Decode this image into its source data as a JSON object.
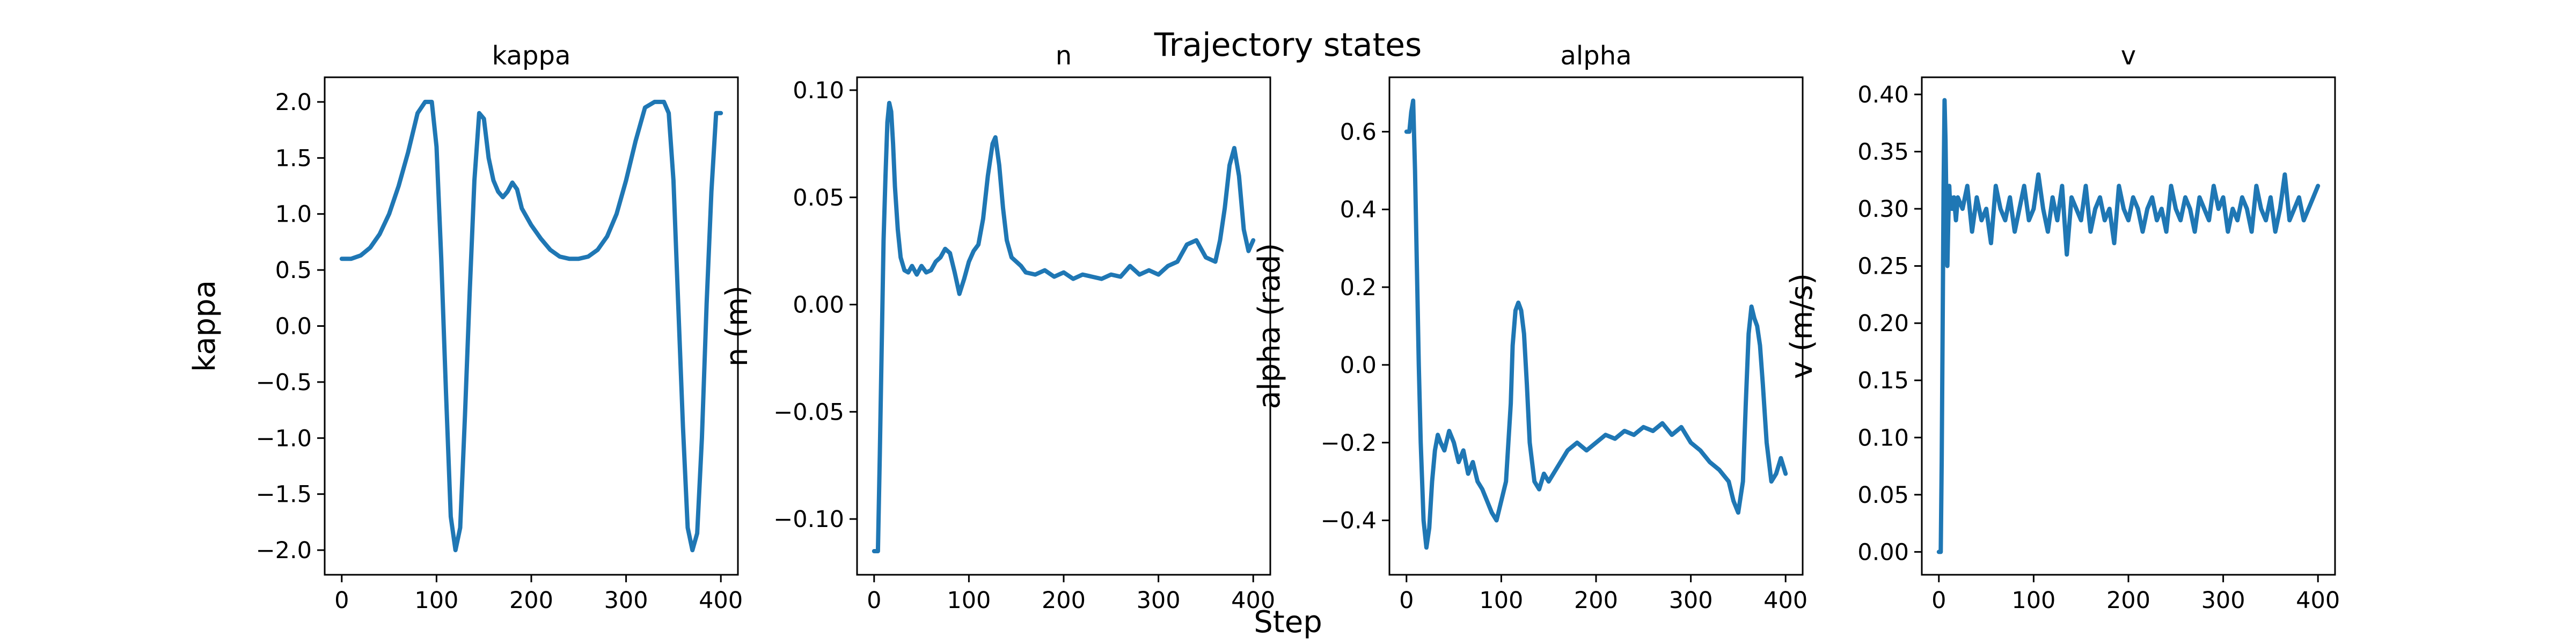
{
  "figure": {
    "suptitle": "Trajectory states",
    "shared_xlabel": "Step"
  },
  "chart_data": [
    {
      "type": "line",
      "title": "kappa",
      "xlabel": "",
      "ylabel": "kappa",
      "xlim": [
        -18,
        418
      ],
      "ylim": [
        -2.22,
        2.22
      ],
      "xticks": [
        0,
        100,
        200,
        300,
        400
      ],
      "yticks": [
        -2.0,
        -1.5,
        -1.0,
        -0.5,
        0.0,
        0.5,
        1.0,
        1.5,
        2.0
      ],
      "ytick_labels": [
        "−2.0",
        "−1.5",
        "−1.0",
        "−0.5",
        "0.0",
        "0.5",
        "1.0",
        "1.5",
        "2.0"
      ],
      "grid": false,
      "series": [
        {
          "color": "#1f77b4",
          "x": [
            0,
            10,
            20,
            30,
            40,
            50,
            60,
            70,
            80,
            88,
            95,
            100,
            105,
            110,
            115,
            120,
            125,
            130,
            135,
            140,
            145,
            150,
            155,
            160,
            165,
            170,
            175,
            180,
            185,
            190,
            200,
            210,
            220,
            230,
            240,
            250,
            260,
            270,
            280,
            290,
            300,
            310,
            320,
            330,
            340,
            345,
            350,
            355,
            360,
            365,
            370,
            375,
            380,
            385,
            390,
            395,
            400
          ],
          "y": [
            0.6,
            0.6,
            0.63,
            0.7,
            0.82,
            1.0,
            1.25,
            1.55,
            1.9,
            2.0,
            2.0,
            1.6,
            0.6,
            -0.6,
            -1.7,
            -2.0,
            -1.8,
            -0.8,
            0.3,
            1.3,
            1.9,
            1.85,
            1.5,
            1.3,
            1.2,
            1.15,
            1.2,
            1.28,
            1.22,
            1.05,
            0.9,
            0.78,
            0.68,
            0.62,
            0.6,
            0.6,
            0.62,
            0.68,
            0.8,
            1.0,
            1.3,
            1.65,
            1.95,
            2.0,
            2.0,
            1.9,
            1.3,
            0.2,
            -0.9,
            -1.8,
            -2.0,
            -1.85,
            -1.0,
            0.2,
            1.2,
            1.9,
            1.9
          ]
        }
      ]
    },
    {
      "type": "line",
      "title": "n",
      "xlabel": "",
      "ylabel": "n (m)",
      "xlim": [
        -18,
        418
      ],
      "ylim": [
        -0.126,
        0.106
      ],
      "xticks": [
        0,
        100,
        200,
        300,
        400
      ],
      "yticks": [
        -0.1,
        -0.05,
        0.0,
        0.05,
        0.1
      ],
      "ytick_labels": [
        "−0.10",
        "−0.05",
        "0.00",
        "0.05",
        "0.10"
      ],
      "grid": false,
      "series": [
        {
          "color": "#1f77b4",
          "x": [
            0,
            4,
            6,
            8,
            10,
            12,
            14,
            16,
            18,
            20,
            22,
            25,
            28,
            32,
            36,
            40,
            45,
            50,
            55,
            60,
            65,
            70,
            75,
            80,
            85,
            90,
            95,
            100,
            105,
            110,
            115,
            120,
            125,
            128,
            132,
            136,
            140,
            145,
            150,
            155,
            160,
            170,
            180,
            190,
            200,
            210,
            220,
            230,
            240,
            250,
            260,
            270,
            280,
            290,
            300,
            310,
            320,
            330,
            340,
            350,
            360,
            365,
            370,
            375,
            380,
            385,
            390,
            395,
            400
          ],
          "y": [
            -0.115,
            -0.115,
            -0.07,
            -0.02,
            0.03,
            0.06,
            0.085,
            0.094,
            0.09,
            0.075,
            0.055,
            0.035,
            0.022,
            0.016,
            0.015,
            0.018,
            0.014,
            0.018,
            0.015,
            0.016,
            0.02,
            0.022,
            0.026,
            0.024,
            0.015,
            0.005,
            0.012,
            0.02,
            0.025,
            0.028,
            0.04,
            0.06,
            0.075,
            0.078,
            0.065,
            0.045,
            0.03,
            0.022,
            0.02,
            0.018,
            0.015,
            0.014,
            0.016,
            0.013,
            0.015,
            0.012,
            0.014,
            0.013,
            0.012,
            0.014,
            0.013,
            0.018,
            0.014,
            0.016,
            0.014,
            0.018,
            0.02,
            0.028,
            0.03,
            0.022,
            0.02,
            0.03,
            0.045,
            0.065,
            0.073,
            0.06,
            0.035,
            0.025,
            0.03
          ]
        }
      ]
    },
    {
      "type": "line",
      "title": "alpha",
      "xlabel": "",
      "ylabel": "alpha (rad)",
      "xlim": [
        -18,
        418
      ],
      "ylim": [
        -0.54,
        0.74
      ],
      "xticks": [
        0,
        100,
        200,
        300,
        400
      ],
      "yticks": [
        -0.4,
        -0.2,
        0.0,
        0.2,
        0.4,
        0.6
      ],
      "ytick_labels": [
        "−0.4",
        "−0.2",
        "0.0",
        "0.2",
        "0.4",
        "0.6"
      ],
      "grid": false,
      "series": [
        {
          "color": "#1f77b4",
          "x": [
            0,
            3,
            5,
            7,
            9,
            11,
            13,
            15,
            18,
            21,
            24,
            27,
            30,
            33,
            36,
            40,
            45,
            50,
            55,
            60,
            65,
            70,
            75,
            80,
            85,
            90,
            95,
            100,
            105,
            110,
            112,
            115,
            118,
            121,
            124,
            127,
            130,
            135,
            140,
            145,
            150,
            160,
            170,
            180,
            190,
            200,
            210,
            220,
            230,
            240,
            250,
            260,
            270,
            280,
            290,
            300,
            310,
            320,
            330,
            340,
            345,
            350,
            355,
            358,
            361,
            364,
            367,
            370,
            373,
            376,
            380,
            385,
            390,
            395,
            400
          ],
          "y": [
            0.6,
            0.6,
            0.65,
            0.68,
            0.5,
            0.25,
            0.0,
            -0.2,
            -0.4,
            -0.47,
            -0.42,
            -0.3,
            -0.22,
            -0.18,
            -0.2,
            -0.22,
            -0.17,
            -0.2,
            -0.25,
            -0.22,
            -0.28,
            -0.25,
            -0.3,
            -0.32,
            -0.35,
            -0.38,
            -0.4,
            -0.35,
            -0.3,
            -0.1,
            0.05,
            0.14,
            0.16,
            0.14,
            0.08,
            -0.05,
            -0.2,
            -0.3,
            -0.32,
            -0.28,
            -0.3,
            -0.26,
            -0.22,
            -0.2,
            -0.22,
            -0.2,
            -0.18,
            -0.19,
            -0.17,
            -0.18,
            -0.16,
            -0.17,
            -0.15,
            -0.18,
            -0.16,
            -0.2,
            -0.22,
            -0.25,
            -0.27,
            -0.3,
            -0.35,
            -0.38,
            -0.3,
            -0.1,
            0.08,
            0.15,
            0.12,
            0.1,
            0.05,
            -0.05,
            -0.2,
            -0.3,
            -0.28,
            -0.24,
            -0.28
          ]
        }
      ]
    },
    {
      "type": "line",
      "title": "v",
      "xlabel": "",
      "ylabel": "v (m/s)",
      "xlim": [
        -18,
        418
      ],
      "ylim": [
        -0.02,
        0.415
      ],
      "xticks": [
        0,
        100,
        200,
        300,
        400
      ],
      "yticks": [
        0.0,
        0.05,
        0.1,
        0.15,
        0.2,
        0.25,
        0.3,
        0.35,
        0.4
      ],
      "ytick_labels": [
        "0.00",
        "0.05",
        "0.10",
        "0.15",
        "0.20",
        "0.25",
        "0.30",
        "0.35",
        "0.40"
      ],
      "grid": false,
      "series": [
        {
          "color": "#1f77b4",
          "x": [
            0,
            2,
            3,
            4,
            5,
            6,
            7,
            8,
            9,
            10,
            11,
            12,
            13,
            14,
            16,
            18,
            20,
            25,
            30,
            35,
            40,
            45,
            50,
            55,
            60,
            65,
            70,
            75,
            80,
            85,
            90,
            95,
            100,
            105,
            110,
            115,
            120,
            125,
            130,
            135,
            140,
            145,
            150,
            155,
            160,
            165,
            170,
            175,
            180,
            185,
            190,
            195,
            200,
            205,
            210,
            215,
            220,
            225,
            230,
            235,
            240,
            245,
            250,
            255,
            260,
            265,
            270,
            275,
            280,
            285,
            290,
            295,
            300,
            305,
            310,
            315,
            320,
            325,
            330,
            335,
            340,
            345,
            350,
            355,
            360,
            365,
            370,
            375,
            380,
            385,
            390,
            395,
            400
          ],
          "y": [
            0.0,
            0.0,
            0.08,
            0.2,
            0.32,
            0.395,
            0.36,
            0.3,
            0.25,
            0.29,
            0.32,
            0.3,
            0.31,
            0.3,
            0.31,
            0.29,
            0.31,
            0.3,
            0.32,
            0.28,
            0.31,
            0.29,
            0.3,
            0.27,
            0.32,
            0.3,
            0.29,
            0.31,
            0.28,
            0.3,
            0.32,
            0.29,
            0.3,
            0.33,
            0.3,
            0.28,
            0.31,
            0.29,
            0.32,
            0.26,
            0.31,
            0.3,
            0.29,
            0.32,
            0.28,
            0.3,
            0.31,
            0.29,
            0.3,
            0.27,
            0.32,
            0.3,
            0.29,
            0.31,
            0.3,
            0.28,
            0.3,
            0.31,
            0.29,
            0.3,
            0.28,
            0.32,
            0.3,
            0.29,
            0.31,
            0.3,
            0.28,
            0.31,
            0.3,
            0.29,
            0.32,
            0.3,
            0.31,
            0.28,
            0.3,
            0.29,
            0.31,
            0.3,
            0.28,
            0.32,
            0.3,
            0.29,
            0.31,
            0.28,
            0.3,
            0.33,
            0.29,
            0.3,
            0.31,
            0.29,
            0.3,
            0.31,
            0.32
          ]
        }
      ]
    }
  ]
}
